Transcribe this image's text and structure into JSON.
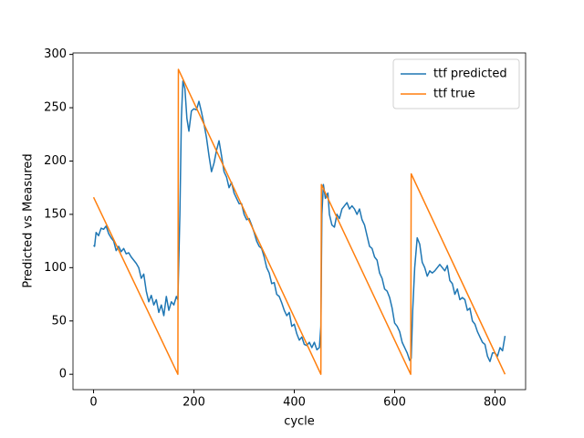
{
  "chart_data": {
    "type": "line",
    "xlabel": "cycle",
    "ylabel": "Predicted vs Measured",
    "xlim": [
      -41,
      861
    ],
    "ylim": [
      -14.4,
      301.4
    ],
    "xticks": [
      0,
      200,
      400,
      600,
      800
    ],
    "yticks": [
      0,
      50,
      100,
      150,
      200,
      250,
      300
    ],
    "grid": false,
    "legend": "upper right",
    "series": [
      {
        "name": "ttf predicted",
        "color": "#1f77b4",
        "x": [
          0,
          2,
          5,
          10,
          15,
          20,
          25,
          30,
          35,
          40,
          45,
          50,
          55,
          60,
          65,
          70,
          75,
          80,
          85,
          90,
          95,
          100,
          105,
          110,
          115,
          120,
          125,
          130,
          135,
          140,
          145,
          150,
          155,
          160,
          165,
          168,
          172,
          175,
          178,
          182,
          186,
          190,
          195,
          200,
          205,
          210,
          215,
          220,
          225,
          230,
          235,
          240,
          245,
          250,
          255,
          260,
          265,
          270,
          275,
          280,
          285,
          290,
          295,
          300,
          305,
          310,
          315,
          320,
          325,
          330,
          335,
          340,
          345,
          350,
          355,
          360,
          365,
          370,
          375,
          380,
          385,
          390,
          395,
          400,
          405,
          410,
          415,
          420,
          425,
          430,
          435,
          440,
          445,
          450,
          453,
          455,
          458,
          462,
          467,
          470,
          475,
          480,
          485,
          490,
          495,
          500,
          505,
          510,
          515,
          520,
          525,
          530,
          535,
          540,
          545,
          550,
          555,
          560,
          565,
          570,
          575,
          580,
          585,
          590,
          595,
          600,
          605,
          610,
          615,
          620,
          625,
          630,
          633,
          636,
          640,
          645,
          650,
          655,
          660,
          665,
          670,
          675,
          680,
          685,
          690,
          695,
          700,
          705,
          710,
          715,
          720,
          725,
          730,
          735,
          740,
          745,
          750,
          755,
          760,
          765,
          770,
          775,
          780,
          785,
          790,
          795,
          800,
          805,
          810,
          815,
          820
        ],
        "values": [
          121,
          120,
          133,
          130,
          137,
          136,
          139,
          132,
          128,
          125,
          116,
          120,
          115,
          118,
          113,
          114,
          110,
          107,
          104,
          100,
          90,
          94,
          78,
          68,
          74,
          65,
          70,
          58,
          65,
          55,
          73,
          60,
          68,
          65,
          73,
          70,
          150,
          240,
          275,
          268,
          240,
          228,
          247,
          249,
          248,
          256,
          246,
          235,
          222,
          205,
          190,
          198,
          210,
          219,
          205,
          190,
          185,
          175,
          180,
          170,
          165,
          160,
          160,
          150,
          145,
          146,
          140,
          133,
          125,
          120,
          118,
          110,
          100,
          95,
          85,
          86,
          75,
          73,
          67,
          60,
          55,
          58,
          45,
          47,
          38,
          32,
          35,
          28,
          27,
          30,
          25,
          30,
          23,
          25,
          45,
          150,
          178,
          165,
          170,
          150,
          140,
          138,
          150,
          146,
          155,
          158,
          161,
          155,
          158,
          155,
          150,
          155,
          145,
          140,
          130,
          120,
          118,
          110,
          107,
          95,
          90,
          80,
          78,
          72,
          62,
          48,
          45,
          40,
          30,
          25,
          20,
          13,
          15,
          60,
          100,
          128,
          122,
          105,
          100,
          92,
          97,
          95,
          97,
          100,
          103,
          100,
          97,
          102,
          88,
          85,
          75,
          80,
          70,
          72,
          70,
          60,
          62,
          50,
          47,
          40,
          35,
          30,
          28,
          17,
          12,
          20,
          20,
          17,
          25,
          22,
          36
        ]
      },
      {
        "name": "ttf true",
        "color": "#ff7f0e",
        "x": [
          0,
          168,
          169,
          453,
          454,
          632,
          633,
          820
        ],
        "values": [
          166,
          0,
          286,
          0,
          178,
          0,
          188,
          0
        ]
      }
    ]
  }
}
